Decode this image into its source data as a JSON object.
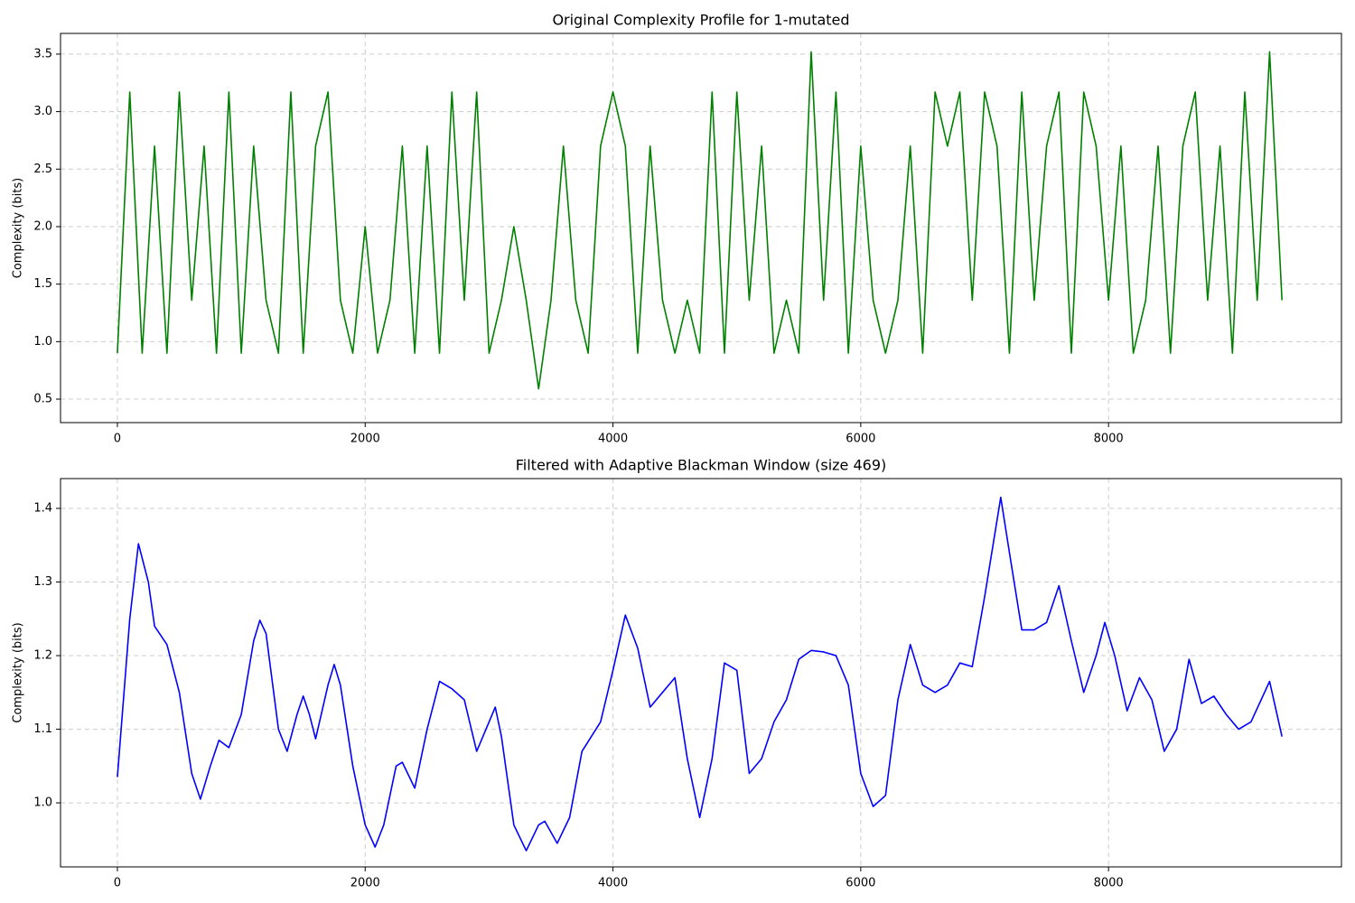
{
  "chart_data": [
    {
      "type": "line",
      "title": "Original Complexity Profile for 1-mutated",
      "ylabel": "Complexity (bits)",
      "x": [
        0,
        100,
        200,
        300,
        400,
        500,
        600,
        700,
        800,
        900,
        1000,
        1100,
        1200,
        1300,
        1400,
        1500,
        1600,
        1700,
        1800,
        1900,
        2000,
        2100,
        2200,
        2300,
        2400,
        2500,
        2600,
        2700,
        2800,
        2900,
        3000,
        3100,
        3200,
        3300,
        3400,
        3500,
        3600,
        3700,
        3800,
        3900,
        4000,
        4100,
        4200,
        4300,
        4400,
        4500,
        4600,
        4700,
        4800,
        4900,
        5000,
        5100,
        5200,
        5300,
        5400,
        5500,
        5600,
        5700,
        5800,
        5900,
        6000,
        6100,
        6200,
        6300,
        6400,
        6500,
        6600,
        6700,
        6800,
        6900,
        7000,
        7100,
        7200,
        7300,
        7400,
        7500,
        7600,
        7700,
        7800,
        7900,
        8000,
        8100,
        8200,
        8300,
        8400,
        8500,
        8600,
        8700,
        8800,
        8900,
        9000,
        9100,
        9200,
        9300,
        9400
      ],
      "series": [
        {
          "color": "#008000",
          "values": [
            0.9,
            3.17,
            0.9,
            2.7,
            0.9,
            3.17,
            1.36,
            2.7,
            0.9,
            3.17,
            0.9,
            2.7,
            1.36,
            0.9,
            3.17,
            0.9,
            2.7,
            3.17,
            1.36,
            0.9,
            2.0,
            0.9,
            1.36,
            2.7,
            0.9,
            2.7,
            0.9,
            3.17,
            1.36,
            3.17,
            0.9,
            1.36,
            2.0,
            1.36,
            0.59,
            1.36,
            2.7,
            1.36,
            0.9,
            2.7,
            3.17,
            2.7,
            0.9,
            2.7,
            1.36,
            0.9,
            1.36,
            0.9,
            3.17,
            0.9,
            3.17,
            1.36,
            2.7,
            0.9,
            1.36,
            0.9,
            3.52,
            1.36,
            3.17,
            0.9,
            2.7,
            1.36,
            0.9,
            1.36,
            2.7,
            0.9,
            3.17,
            2.7,
            3.17,
            1.36,
            3.17,
            2.7,
            0.9,
            3.17,
            1.36,
            2.7,
            3.17,
            0.9,
            3.17,
            2.7,
            1.36,
            2.7,
            0.9,
            1.36,
            2.7,
            0.9,
            2.7,
            3.17,
            1.36,
            2.7,
            0.9,
            3.17,
            1.36,
            3.52,
            1.36
          ]
        }
      ],
      "xlim": [
        -459,
        9880
      ],
      "ylim": [
        0.296,
        3.68
      ],
      "xticks": [
        0,
        2000,
        4000,
        6000,
        8000
      ],
      "yticks": [
        0.5,
        {
          "value": 1,
          "label": "1.0"
        },
        1.5,
        {
          "value": 2,
          "label": "2.0"
        },
        2.5,
        {
          "value": 3,
          "label": "3.0"
        },
        3.5
      ],
      "grid": true
    },
    {
      "type": "line",
      "title": "Filtered with Adaptive Blackman Window (size 469)",
      "ylabel": "Complexity (bits)",
      "x": [
        0,
        100,
        170,
        250,
        300,
        400,
        500,
        600,
        670,
        750,
        820,
        900,
        1000,
        1100,
        1150,
        1200,
        1300,
        1370,
        1450,
        1500,
        1550,
        1600,
        1700,
        1750,
        1800,
        1900,
        2000,
        2080,
        2150,
        2250,
        2300,
        2400,
        2500,
        2600,
        2700,
        2800,
        2900,
        3000,
        3050,
        3100,
        3200,
        3300,
        3400,
        3450,
        3550,
        3650,
        3750,
        3900,
        4000,
        4100,
        4200,
        4300,
        4400,
        4500,
        4600,
        4700,
        4800,
        4900,
        5000,
        5100,
        5200,
        5300,
        5400,
        5500,
        5600,
        5700,
        5800,
        5900,
        6000,
        6100,
        6200,
        6300,
        6400,
        6500,
        6600,
        6700,
        6800,
        6900,
        7000,
        7130,
        7200,
        7300,
        7400,
        7500,
        7600,
        7700,
        7800,
        7900,
        7970,
        8050,
        8150,
        8250,
        8350,
        8450,
        8550,
        8650,
        8750,
        8850,
        8950,
        9050,
        9150,
        9300,
        9400
      ],
      "series": [
        {
          "color": "#0000ff",
          "values": [
            1.035,
            1.25,
            1.352,
            1.3,
            1.24,
            1.215,
            1.15,
            1.04,
            1.005,
            1.05,
            1.085,
            1.075,
            1.12,
            1.22,
            1.248,
            1.23,
            1.1,
            1.07,
            1.12,
            1.145,
            1.12,
            1.087,
            1.16,
            1.188,
            1.16,
            1.05,
            0.97,
            0.94,
            0.97,
            1.05,
            1.055,
            1.02,
            1.1,
            1.165,
            1.155,
            1.14,
            1.07,
            1.11,
            1.13,
            1.09,
            0.97,
            0.935,
            0.97,
            0.975,
            0.945,
            0.98,
            1.07,
            1.11,
            1.18,
            1.255,
            1.21,
            1.13,
            1.15,
            1.17,
            1.06,
            0.98,
            1.06,
            1.19,
            1.18,
            1.04,
            1.06,
            1.11,
            1.14,
            1.195,
            1.207,
            1.205,
            1.2,
            1.16,
            1.04,
            0.995,
            1.01,
            1.14,
            1.215,
            1.16,
            1.15,
            1.16,
            1.19,
            1.185,
            1.28,
            1.415,
            1.34,
            1.235,
            1.235,
            1.245,
            1.295,
            1.22,
            1.15,
            1.2,
            1.245,
            1.2,
            1.125,
            1.17,
            1.14,
            1.07,
            1.1,
            1.195,
            1.135,
            1.145,
            1.12,
            1.1,
            1.11,
            1.165,
            1.09
          ]
        }
      ],
      "xlim": [
        -459,
        9880
      ],
      "ylim": [
        0.913,
        1.4405
      ],
      "xticks": [
        0,
        2000,
        4000,
        6000,
        8000
      ],
      "yticks": [
        {
          "value": 1,
          "label": "1.0"
        },
        1.1,
        1.2,
        1.3,
        1.4
      ],
      "grid": true
    }
  ]
}
